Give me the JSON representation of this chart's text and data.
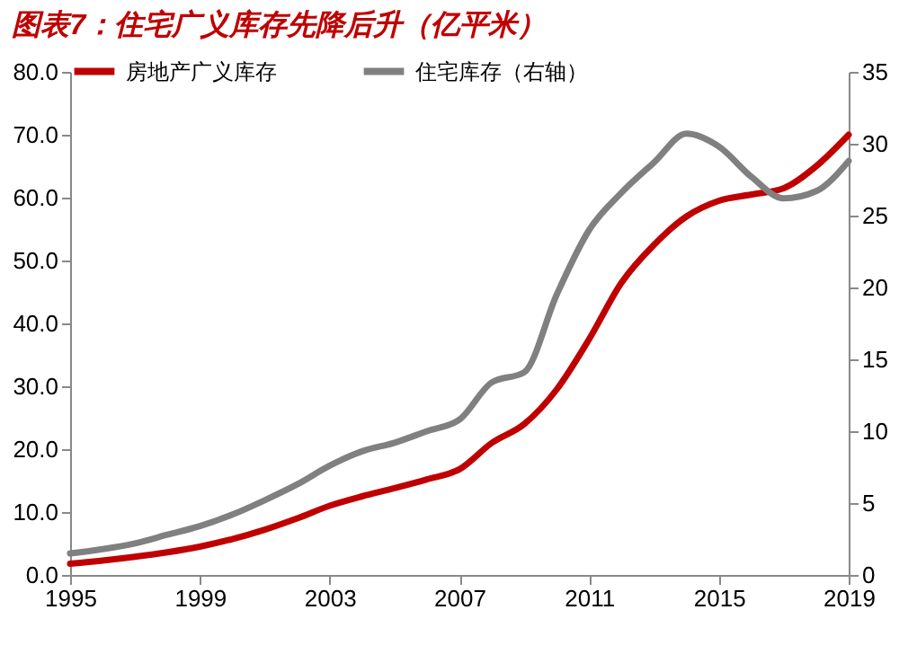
{
  "chart_data": {
    "type": "line",
    "title": "图表7：住宅广义库存先降后升（亿平米）",
    "x": [
      1995,
      1996,
      1997,
      1998,
      1999,
      2000,
      2001,
      2002,
      2003,
      2004,
      2005,
      2006,
      2007,
      2008,
      2009,
      2010,
      2011,
      2012,
      2013,
      2014,
      2015,
      2016,
      2017,
      2018,
      2019
    ],
    "series": [
      {
        "name": "房地产广义库存",
        "color": "#c00000",
        "values": [
          1.8,
          2.3,
          2.9,
          3.6,
          4.5,
          5.7,
          7.2,
          9.0,
          11.0,
          12.5,
          13.8,
          15.2,
          16.8,
          21.0,
          24.0,
          29.5,
          37.5,
          46.5,
          52.5,
          57.0,
          59.5,
          60.5,
          61.5,
          65.0,
          70.0
        ]
      },
      {
        "name": "住宅库存（右轴）",
        "color": "#808080",
        "axis": "y2",
        "values": [
          1.5,
          1.8,
          2.2,
          2.8,
          3.4,
          4.2,
          5.2,
          6.3,
          7.6,
          8.6,
          9.2,
          10.0,
          10.8,
          13.4,
          14.1,
          19.5,
          24.0,
          26.6,
          28.7,
          30.7,
          29.8,
          27.7,
          26.2,
          26.7,
          28.8
        ]
      }
    ],
    "xlim": [
      1995,
      2019
    ],
    "xticks": [
      1995,
      1999,
      2003,
      2007,
      2011,
      2015,
      2019
    ],
    "ylim": [
      0,
      80
    ],
    "yticks": [
      {
        "value": 0,
        "label": "0.0"
      },
      {
        "value": 10,
        "label": "10.0"
      },
      {
        "value": 20,
        "label": "20.0"
      },
      {
        "value": 30,
        "label": "30.0"
      },
      {
        "value": 40,
        "label": "40.0"
      },
      {
        "value": 50,
        "label": "50.0"
      },
      {
        "value": 60,
        "label": "60.0"
      },
      {
        "value": 70,
        "label": "70.0"
      },
      {
        "value": 80,
        "label": "80.0"
      }
    ],
    "y2lim": [
      0,
      35
    ],
    "y2ticks": [
      0,
      5,
      10,
      15,
      20,
      25,
      30,
      35
    ],
    "legend": "top",
    "grid": false,
    "marker": "none",
    "line_style": "solid"
  }
}
